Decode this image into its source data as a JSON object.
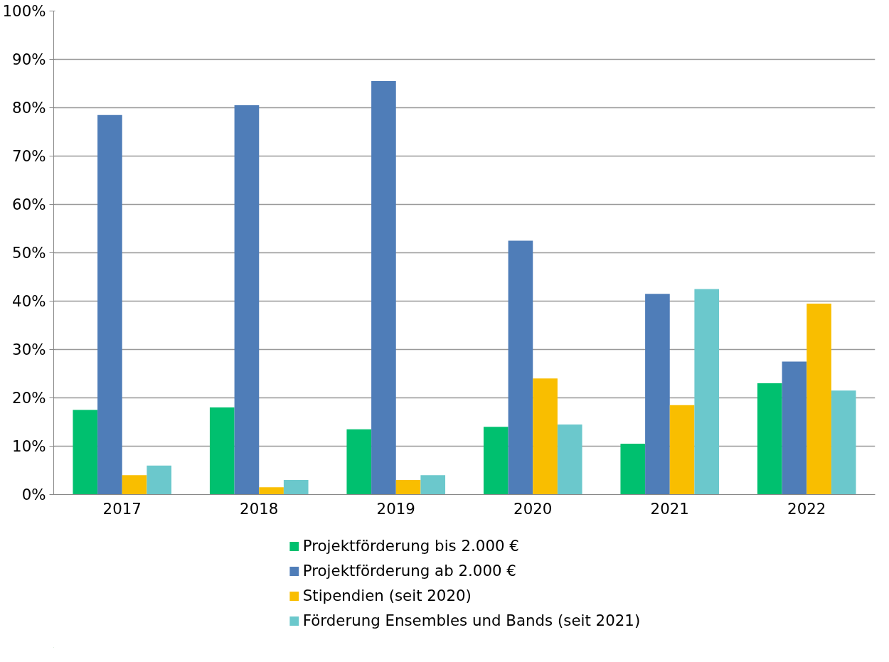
{
  "chart_data": {
    "type": "bar",
    "categories": [
      "2017",
      "2018",
      "2019",
      "2020",
      "2021",
      "2022"
    ],
    "series": [
      {
        "name": "Projektförderung bis 2.000 €",
        "color": "#00c06f",
        "values": [
          17.5,
          18,
          13.5,
          14,
          10.5,
          23
        ]
      },
      {
        "name": "Projektförderung ab 2.000 €",
        "color": "#4f7db8",
        "values": [
          78.5,
          80.5,
          85.5,
          52.5,
          41.5,
          27.5
        ]
      },
      {
        "name": "Stipendien (seit 2020)",
        "color": "#f9be00",
        "values": [
          4,
          1.5,
          3,
          24,
          18.5,
          39.5
        ]
      },
      {
        "name": "Förderung Ensembles und Bands (seit 2021)",
        "color": "#6bc8cc",
        "values": [
          6,
          3,
          4,
          14.5,
          42.5,
          21.5
        ]
      }
    ],
    "ylim": [
      0,
      100
    ],
    "yticks": [
      {
        "value": 0,
        "label": "0%"
      },
      {
        "value": 10,
        "label": "10%"
      },
      {
        "value": 20,
        "label": "20%"
      },
      {
        "value": 30,
        "label": "30%"
      },
      {
        "value": 40,
        "label": "40%"
      },
      {
        "value": 50,
        "label": "50%"
      },
      {
        "value": 60,
        "label": "60%"
      },
      {
        "value": 70,
        "label": "70%"
      },
      {
        "value": 80,
        "label": "80%"
      },
      {
        "value": 90,
        "label": "90%"
      },
      {
        "value": 100,
        "label": "100%"
      }
    ],
    "grid": "y",
    "legend": "bottom"
  }
}
